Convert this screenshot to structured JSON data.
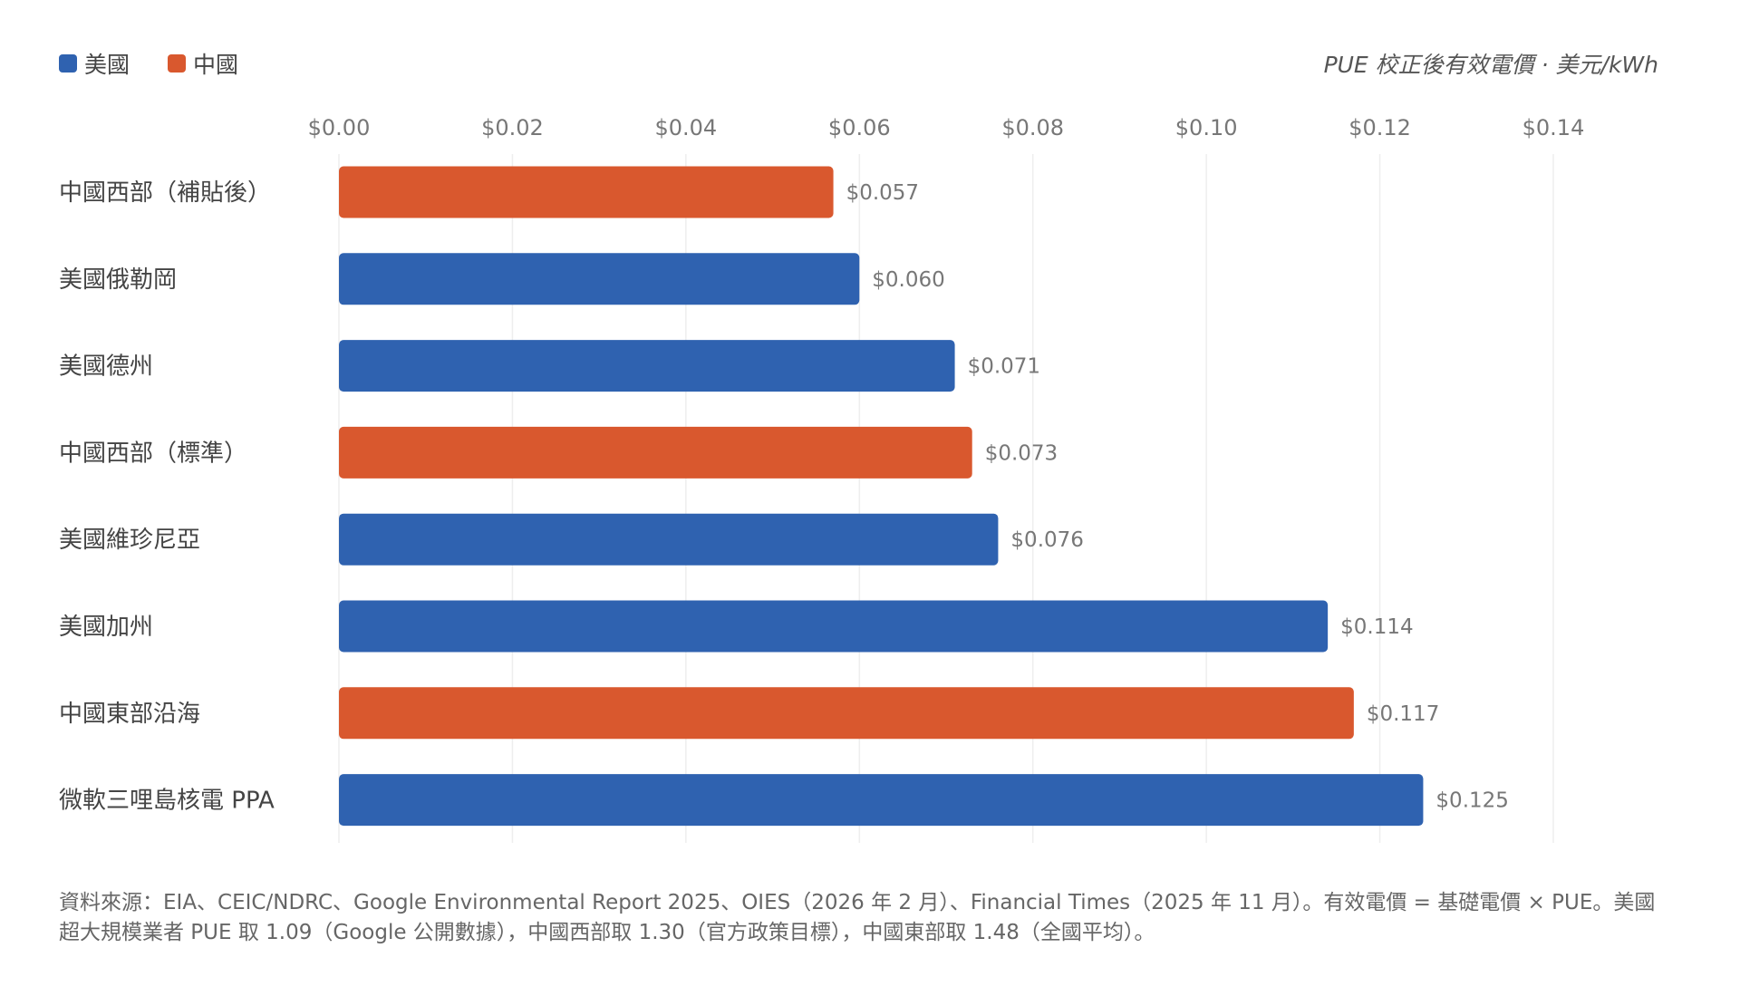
{
  "chart_data": {
    "type": "bar",
    "orientation": "horizontal",
    "categories": [
      "中國西部（補貼後）",
      "美國俄勒岡",
      "美國德州",
      "中國西部（標準）",
      "美國維珍尼亞",
      "美國加州",
      "中國東部沿海",
      "微軟三哩島核電 PPA"
    ],
    "values": [
      0.057,
      0.06,
      0.071,
      0.073,
      0.076,
      0.114,
      0.117,
      0.125
    ],
    "value_labels": [
      "$0.057",
      "$0.060",
      "$0.071",
      "$0.073",
      "$0.076",
      "$0.114",
      "$0.117",
      "$0.125"
    ],
    "groups": [
      "中國",
      "美國",
      "美國",
      "中國",
      "美國",
      "美國",
      "中國",
      "美國"
    ],
    "legend": [
      {
        "name": "美國",
        "color": "#2f62b0"
      },
      {
        "name": "中國",
        "color": "#d9582e"
      }
    ],
    "legend_placement": "top-left",
    "unit_label": "PUE 校正後有效電價 · 美元/kWh",
    "xlim": [
      0,
      0.14
    ],
    "xticks": [
      0,
      0.02,
      0.04,
      0.06,
      0.08,
      0.1,
      0.12,
      0.14
    ],
    "xtick_labels": [
      "$0.00",
      "$0.02",
      "$0.04",
      "$0.06",
      "$0.08",
      "$0.10",
      "$0.12",
      "$0.14"
    ],
    "x_axis_position": "top",
    "grid": true
  },
  "footnote": "資料來源：EIA、CEIC/NDRC、Google Environmental Report 2025、OIES（2026 年 2 月）、Financial Times（2025 年 11 月）。有效電價 = 基礎電價 × PUE。美國超大規模業者 PUE 取 1.09（Google 公開數據），中國西部取 1.30（官方政策目標），中國東部取 1.48（全國平均）。"
}
